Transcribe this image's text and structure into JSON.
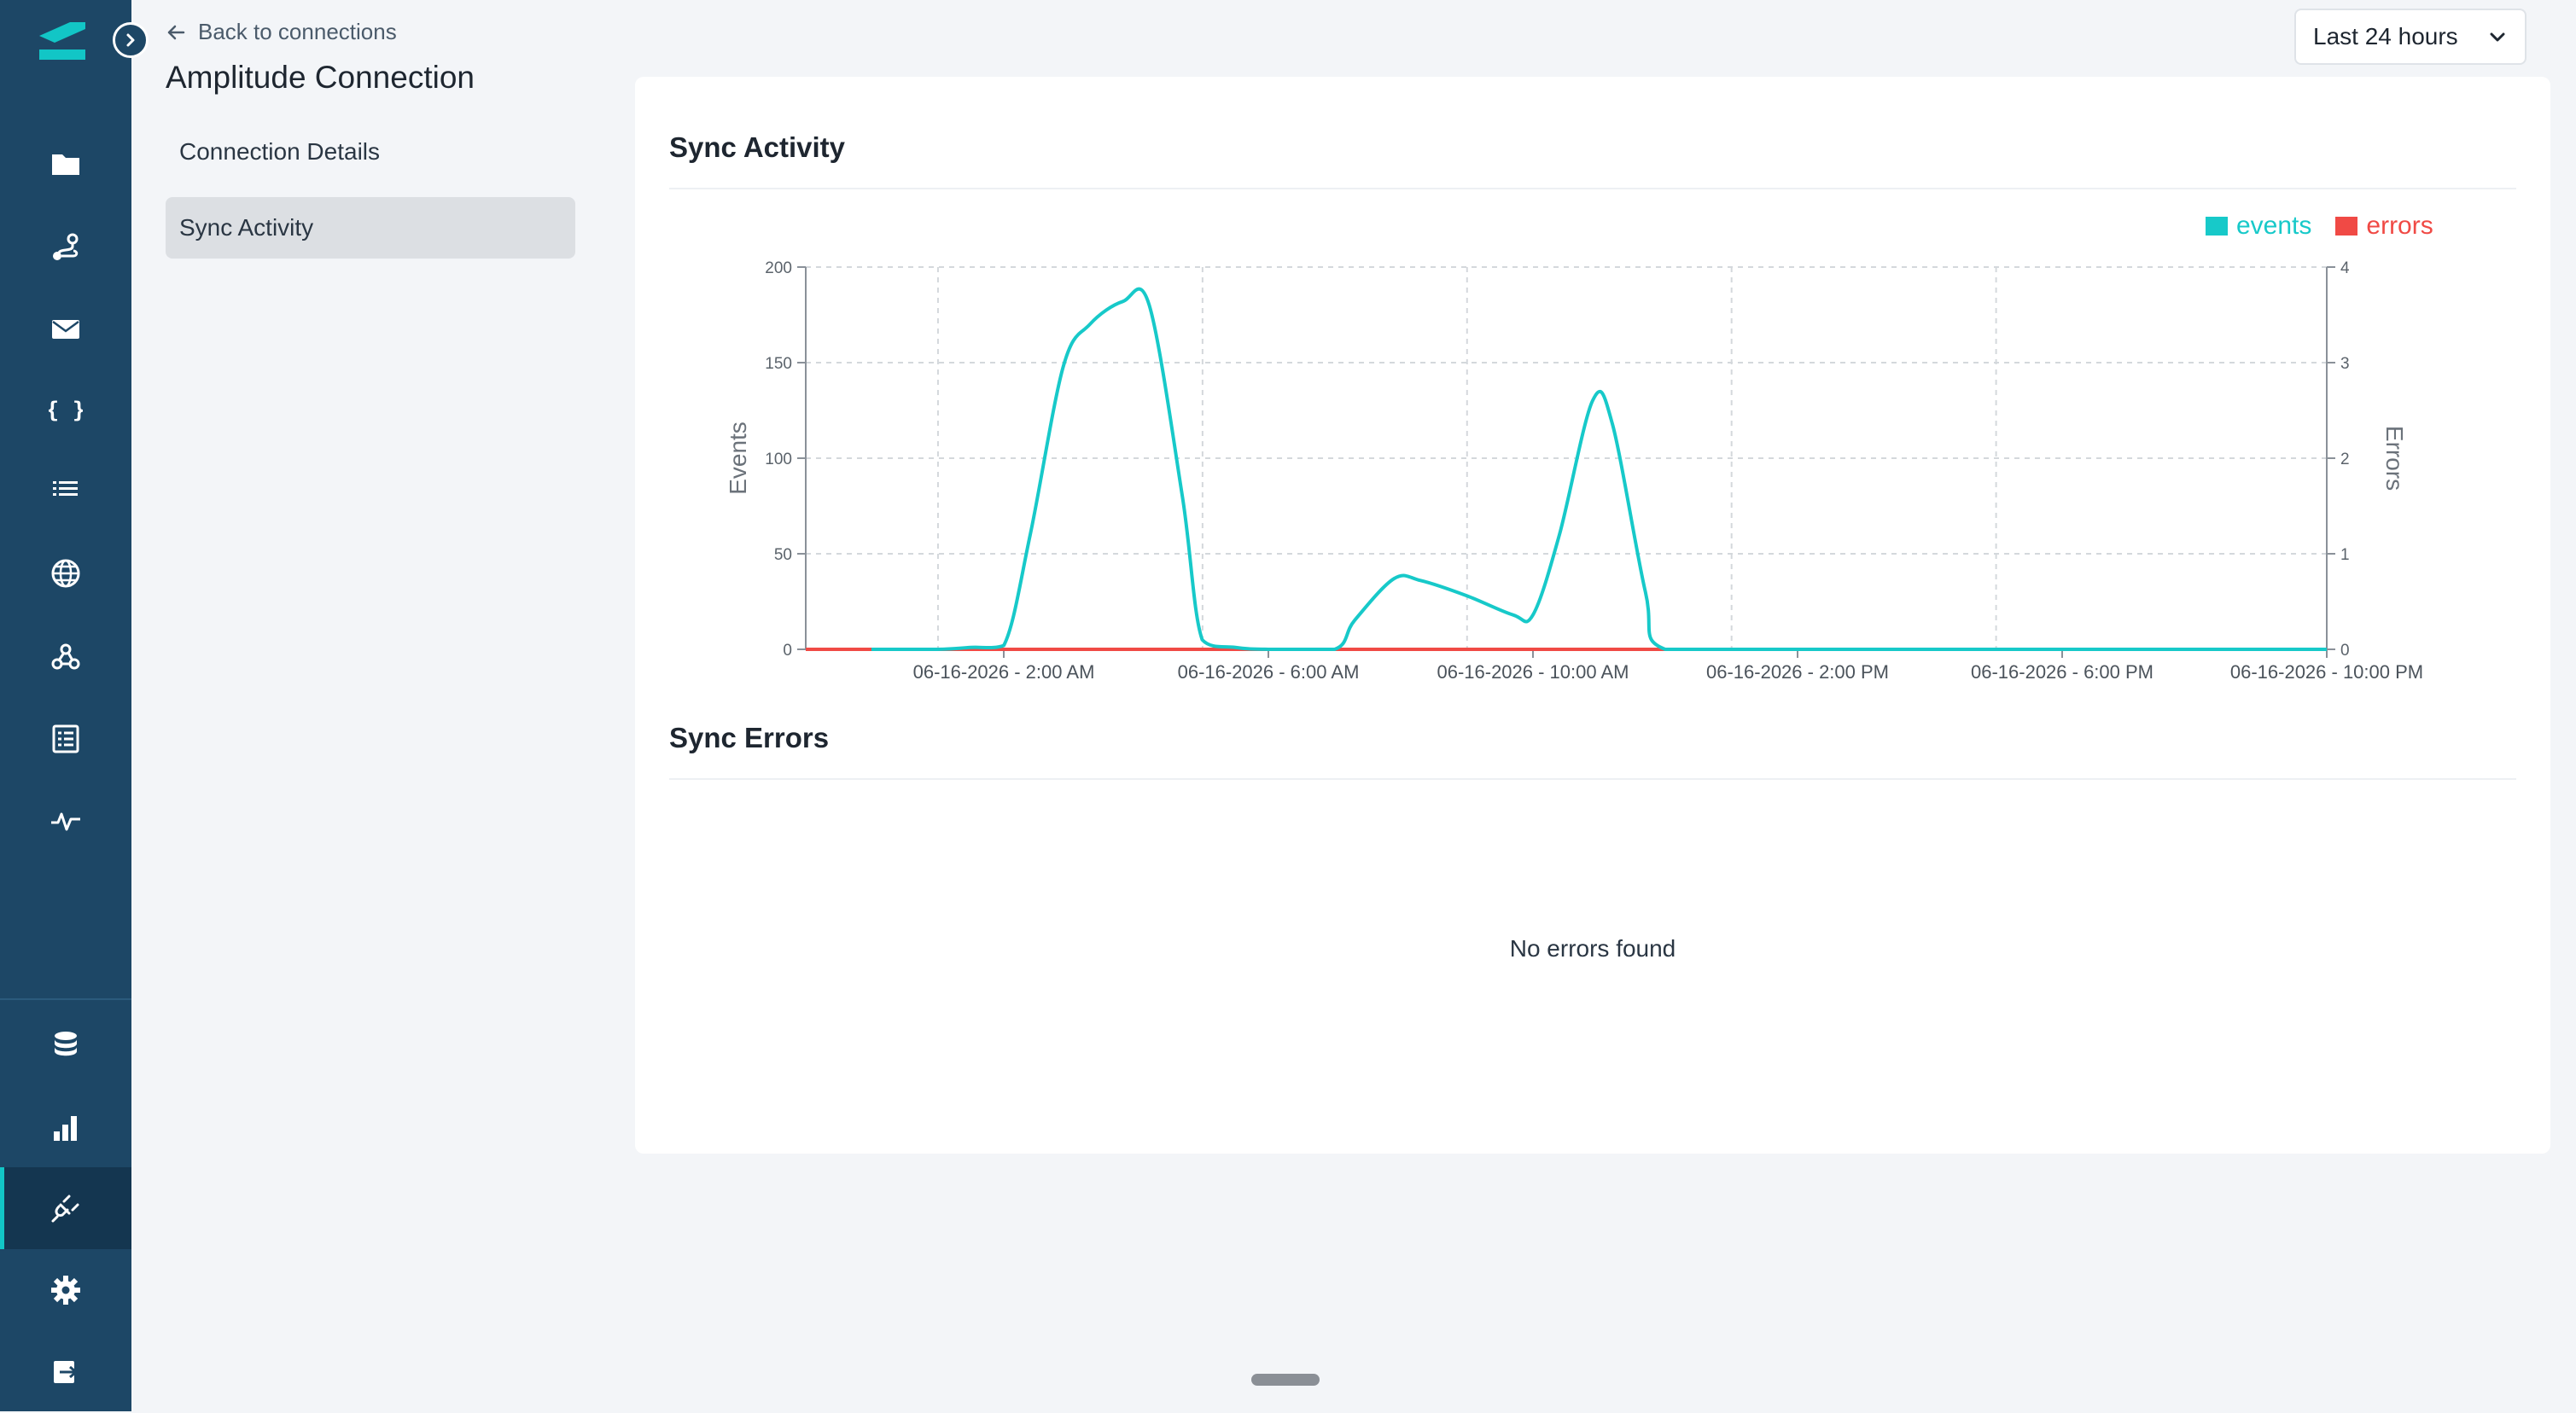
{
  "nav": {
    "items": [
      {
        "icon": "folder-icon"
      },
      {
        "icon": "route-icon"
      },
      {
        "icon": "mail-icon"
      },
      {
        "icon": "braces-icon"
      },
      {
        "icon": "list-icon"
      },
      {
        "icon": "globe-icon"
      },
      {
        "icon": "webhook-icon"
      },
      {
        "icon": "table-list-icon"
      },
      {
        "icon": "activity-icon"
      }
    ],
    "bottom_items": [
      {
        "icon": "database-icon"
      },
      {
        "icon": "bar-chart-icon"
      },
      {
        "icon": "plug-icon",
        "active": true
      },
      {
        "icon": "gear-icon"
      },
      {
        "icon": "logout-icon"
      }
    ]
  },
  "header": {
    "back_label": "Back to connections",
    "title": "Amplitude Connection"
  },
  "subnav": {
    "items": [
      {
        "label": "Connection Details",
        "active": false
      },
      {
        "label": "Sync Activity",
        "active": true
      }
    ]
  },
  "range_select": {
    "value": "Last 24 hours"
  },
  "sync_activity": {
    "title": "Sync Activity"
  },
  "sync_errors": {
    "title": "Sync Errors",
    "empty_message": "No errors found"
  },
  "colors": {
    "events": "#17c9c9",
    "errors": "#f04a45",
    "sidebar": "#1d4766"
  },
  "chart_data": {
    "type": "line",
    "xlabels": [
      "06-16-2026 - 2:00 AM",
      "06-16-2026 - 6:00 AM",
      "06-16-2026 - 10:00 AM",
      "06-16-2026 - 2:00 PM",
      "06-16-2026 - 6:00 PM",
      "06-16-2026 - 10:00 PM"
    ],
    "x_hours_range": [
      -1,
      22
    ],
    "ylabel_left": "Events",
    "ylabel_right": "Errors",
    "ylim_left": [
      0,
      200
    ],
    "ylim_right": [
      0,
      4
    ],
    "yticks_left": [
      0,
      50,
      100,
      150,
      200
    ],
    "yticks_right": [
      0,
      1,
      2,
      3,
      4
    ],
    "legend": {
      "placement": "top-right"
    },
    "grid": true,
    "series": [
      {
        "name": "events",
        "axis": "left",
        "points": [
          [
            0,
            0
          ],
          [
            1,
            0
          ],
          [
            1.5,
            1
          ],
          [
            2,
            2
          ],
          [
            2.4,
            60
          ],
          [
            2.9,
            148
          ],
          [
            3.3,
            170
          ],
          [
            3.8,
            182
          ],
          [
            4.2,
            180
          ],
          [
            4.7,
            80
          ],
          [
            5,
            5
          ],
          [
            5.5,
            1
          ],
          [
            6.0,
            0
          ],
          [
            7,
            0
          ],
          [
            7.3,
            15
          ],
          [
            7.9,
            37
          ],
          [
            8.3,
            36
          ],
          [
            9.0,
            28
          ],
          [
            9.7,
            18
          ],
          [
            10.0,
            18
          ],
          [
            10.4,
            60
          ],
          [
            10.9,
            130
          ],
          [
            11.2,
            118
          ],
          [
            11.7,
            30
          ],
          [
            12.0,
            0
          ],
          [
            14,
            0
          ],
          [
            16,
            0
          ],
          [
            18,
            0
          ],
          [
            20,
            0
          ],
          [
            22,
            0
          ]
        ]
      },
      {
        "name": "errors",
        "axis": "right",
        "points": [
          [
            -1,
            0
          ],
          [
            22,
            0
          ]
        ]
      }
    ]
  }
}
